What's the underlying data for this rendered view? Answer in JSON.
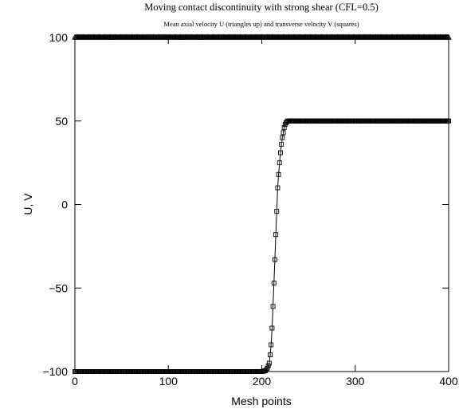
{
  "chart_data": {
    "type": "line",
    "title": "Moving contact discontinuity with strong shear (CFL=0.5)",
    "subtitle": "Mean axial velocity U (triangles up) and transverse velocity V (squares)",
    "xlabel": "Mesh points",
    "ylabel": "U, V",
    "xlim": [
      0,
      400
    ],
    "ylim": [
      -100,
      100
    ],
    "xticks": [
      0,
      100,
      200,
      300,
      400
    ],
    "yticks": [
      -100,
      -50,
      0,
      50,
      100
    ],
    "xtick_labels": [
      "0",
      "100",
      "200",
      "300",
      "400"
    ],
    "ytick_labels": [
      "−100",
      "−50",
      "0",
      "50",
      "100"
    ],
    "grid": false,
    "series": [
      {
        "marker": "triangle-up",
        "x": [
          0,
          400
        ],
        "values": [
          100,
          100
        ]
      },
      {
        "marker": "square",
        "profile": {
          "x": [
            0,
            200,
            204,
            206,
            208,
            209,
            210,
            211,
            212,
            213,
            214,
            215,
            216,
            217,
            218,
            219,
            220,
            221,
            222,
            223,
            224,
            225,
            226,
            227,
            228,
            230,
            233,
            236,
            400
          ],
          "values": [
            -100,
            -100,
            -99.5,
            -98,
            -95,
            -90,
            -84,
            -74,
            -61,
            -47,
            -33,
            -18,
            -4,
            10,
            18,
            25,
            31,
            36,
            40,
            43,
            46,
            48,
            49,
            49.6,
            50,
            50,
            50,
            50,
            50
          ]
        }
      }
    ]
  }
}
